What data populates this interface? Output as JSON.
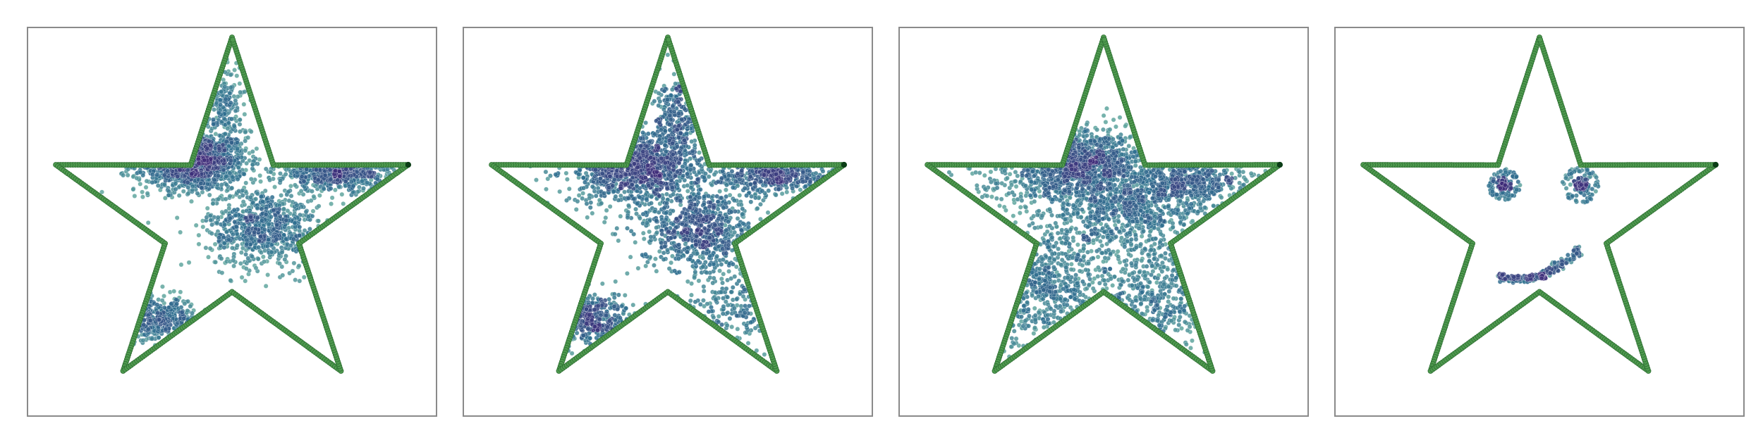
{
  "colors": {
    "boundary_fill": "#4f9a4f",
    "boundary_edge": "#2d6e32",
    "corner_marker": "#0b3d16",
    "particle_dense": "#3d2a78",
    "particle_mid": "#2f6f8f",
    "particle_sparse": "#7fc8a9",
    "frame": "#8a8a8a"
  },
  "chart_data": [
    {
      "type": "scatter",
      "title": "",
      "xlabel": "",
      "ylabel": "",
      "xlim": [
        -1.1,
        1.1
      ],
      "ylim": [
        -1.05,
        1.05
      ],
      "grid": false,
      "boundary": {
        "shape": "five-pointed star",
        "outer_radius": 1.0,
        "inner_radius": 0.38,
        "points_per_edge": 55
      },
      "clusters": [
        {
          "x": -0.22,
          "y": 0.33,
          "sx": 0.15,
          "sy": 0.08,
          "n": 950
        },
        {
          "x": 0.17,
          "y": -0.03,
          "sx": 0.15,
          "sy": 0.11,
          "n": 750
        },
        {
          "x": 0.58,
          "y": 0.27,
          "sx": 0.17,
          "sy": 0.05,
          "n": 520
        },
        {
          "x": -0.42,
          "y": -0.53,
          "sx": 0.12,
          "sy": 0.06,
          "n": 320
        },
        {
          "x": -0.03,
          "y": 0.63,
          "sx": 0.05,
          "sy": 0.12,
          "n": 170
        }
      ]
    },
    {
      "type": "scatter",
      "title": "",
      "xlabel": "",
      "ylabel": "",
      "xlim": [
        -1.1,
        1.1
      ],
      "ylim": [
        -1.05,
        1.05
      ],
      "grid": false,
      "boundary": {
        "shape": "five-pointed star",
        "outer_radius": 1.0,
        "inner_radius": 0.38,
        "points_per_edge": 55
      },
      "clusters": [
        {
          "x": -0.18,
          "y": 0.3,
          "sx": 0.18,
          "sy": 0.1,
          "n": 900
        },
        {
          "x": 0.17,
          "y": -0.04,
          "sx": 0.16,
          "sy": 0.12,
          "n": 700
        },
        {
          "x": 0.58,
          "y": 0.26,
          "sx": 0.17,
          "sy": 0.06,
          "n": 380
        },
        {
          "x": -0.43,
          "y": -0.52,
          "sx": 0.12,
          "sy": 0.07,
          "n": 300
        },
        {
          "x": 0.05,
          "y": 0.55,
          "sx": 0.06,
          "sy": 0.12,
          "n": 230
        },
        {
          "x": 0.33,
          "y": -0.45,
          "sx": 0.12,
          "sy": 0.12,
          "n": 150
        }
      ]
    },
    {
      "type": "scatter",
      "title": "",
      "xlabel": "",
      "ylabel": "",
      "xlim": [
        -1.1,
        1.1
      ],
      "ylim": [
        -1.05,
        1.05
      ],
      "grid": false,
      "boundary": {
        "shape": "five-pointed star",
        "outer_radius": 1.0,
        "inner_radius": 0.38,
        "points_per_edge": 55
      },
      "clusters": [
        {
          "x": -0.13,
          "y": 0.33,
          "sx": 0.16,
          "sy": 0.09,
          "n": 800
        },
        {
          "x": 0.12,
          "y": 0.08,
          "sx": 0.22,
          "sy": 0.14,
          "n": 900
        },
        {
          "x": 0.48,
          "y": 0.22,
          "sx": 0.17,
          "sy": 0.07,
          "n": 450
        },
        {
          "x": -0.33,
          "y": -0.35,
          "sx": 0.2,
          "sy": 0.18,
          "n": 500
        },
        {
          "x": 0.28,
          "y": -0.4,
          "sx": 0.18,
          "sy": 0.15,
          "n": 350
        },
        {
          "x": -0.42,
          "y": 0.2,
          "sx": 0.18,
          "sy": 0.06,
          "n": 150
        }
      ]
    },
    {
      "type": "scatter",
      "title": "",
      "xlabel": "",
      "ylabel": "",
      "xlim": [
        -1.1,
        1.1
      ],
      "ylim": [
        -1.05,
        1.05
      ],
      "grid": false,
      "boundary": {
        "shape": "five-pointed star",
        "outer_radius": 1.0,
        "inner_radius": 0.38,
        "points_per_edge": 55
      },
      "features": [
        {
          "name": "left-eye",
          "cx": -0.19,
          "cy": 0.2,
          "ring_radius": 0.075,
          "ring_points": 60,
          "core_points": 90,
          "core_spread": 0.025
        },
        {
          "name": "right-eye",
          "cx": 0.22,
          "cy": 0.2,
          "ring_radius": 0.085,
          "ring_points": 60,
          "core_points": 90,
          "core_spread": 0.025
        },
        {
          "name": "mouth",
          "cx": 0.0,
          "cy": -0.22,
          "from": [
            -0.22,
            -0.3
          ],
          "to": [
            0.22,
            -0.15
          ],
          "sag": 0.07,
          "n": 220
        }
      ]
    }
  ]
}
